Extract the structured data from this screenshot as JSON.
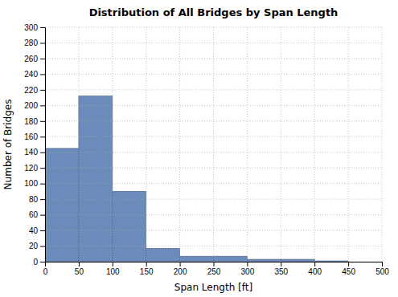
{
  "chart_data": {
    "type": "histogram",
    "title": "Distribution of All Bridges by Span Length",
    "x_label": "Span Length [ft]",
    "y_label": "Number of Bridges",
    "bins": [
      0,
      50,
      100,
      150,
      200,
      250,
      300,
      350,
      400,
      450,
      500
    ],
    "values": [
      145,
      212,
      90,
      17,
      7,
      7,
      3,
      3,
      1,
      0
    ],
    "color": "#6b8cba",
    "xlim": [
      0,
      500
    ],
    "ylim": [
      0,
      300
    ],
    "xticks": [
      0,
      50,
      100,
      150,
      200,
      250,
      300,
      350,
      400,
      450,
      500
    ],
    "yticks": [
      0,
      20,
      40,
      60,
      80,
      100,
      120,
      140,
      160,
      180,
      200,
      220,
      240,
      260,
      280,
      300
    ],
    "grid": true
  }
}
